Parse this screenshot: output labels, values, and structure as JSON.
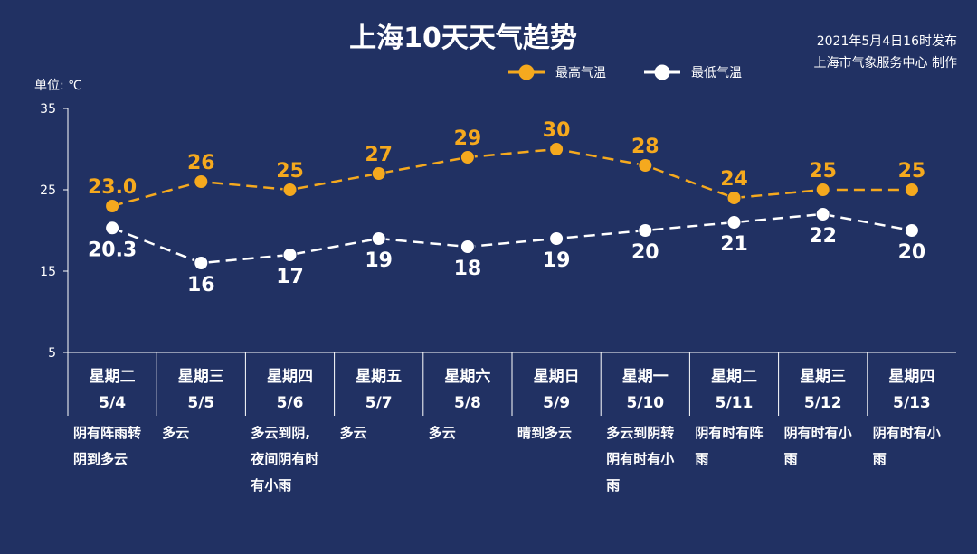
{
  "chart_data": {
    "type": "line",
    "title": "上海10天天气趋势",
    "publish_time": "2021年5月4日16时发布",
    "publisher": "上海市气象服务中心 制作",
    "unit_label": "单位: ℃",
    "ylim": [
      5,
      35
    ],
    "yticks": [
      5,
      15,
      25,
      35
    ],
    "legend_position": "top-right",
    "categories": [
      {
        "weekday": "星期二",
        "date": "5/4",
        "weather": [
          "阴有阵雨转",
          "阴到多云"
        ]
      },
      {
        "weekday": "星期三",
        "date": "5/5",
        "weather": [
          "多云"
        ]
      },
      {
        "weekday": "星期四",
        "date": "5/6",
        "weather": [
          "多云到阴,",
          "夜间阴有时",
          "有小雨"
        ]
      },
      {
        "weekday": "星期五",
        "date": "5/7",
        "weather": [
          "多云"
        ]
      },
      {
        "weekday": "星期六",
        "date": "5/8",
        "weather": [
          "多云"
        ]
      },
      {
        "weekday": "星期日",
        "date": "5/9",
        "weather": [
          "晴到多云"
        ]
      },
      {
        "weekday": "星期一",
        "date": "5/10",
        "weather": [
          "多云到阴转",
          "阴有时有小",
          "雨"
        ]
      },
      {
        "weekday": "星期二",
        "date": "5/11",
        "weather": [
          "阴有时有阵",
          "雨"
        ]
      },
      {
        "weekday": "星期三",
        "date": "5/12",
        "weather": [
          "阴有时有小",
          "雨"
        ]
      },
      {
        "weekday": "星期四",
        "date": "5/13",
        "weather": [
          "阴有时有小",
          "雨"
        ]
      }
    ],
    "series": [
      {
        "name": "最高气温",
        "color": "#f5a91e",
        "values": [
          23.0,
          26,
          25,
          27,
          29,
          30,
          28,
          24,
          25,
          25
        ],
        "labels": [
          "23.0",
          "26",
          "25",
          "27",
          "29",
          "30",
          "28",
          "24",
          "25",
          "25"
        ]
      },
      {
        "name": "最低气温",
        "color": "#ffffff",
        "values": [
          20.3,
          16,
          17,
          19,
          18,
          19,
          20,
          21,
          22,
          20
        ],
        "labels": [
          "20.3",
          "16",
          "17",
          "19",
          "18",
          "19",
          "20",
          "21",
          "22",
          "20"
        ]
      }
    ]
  }
}
